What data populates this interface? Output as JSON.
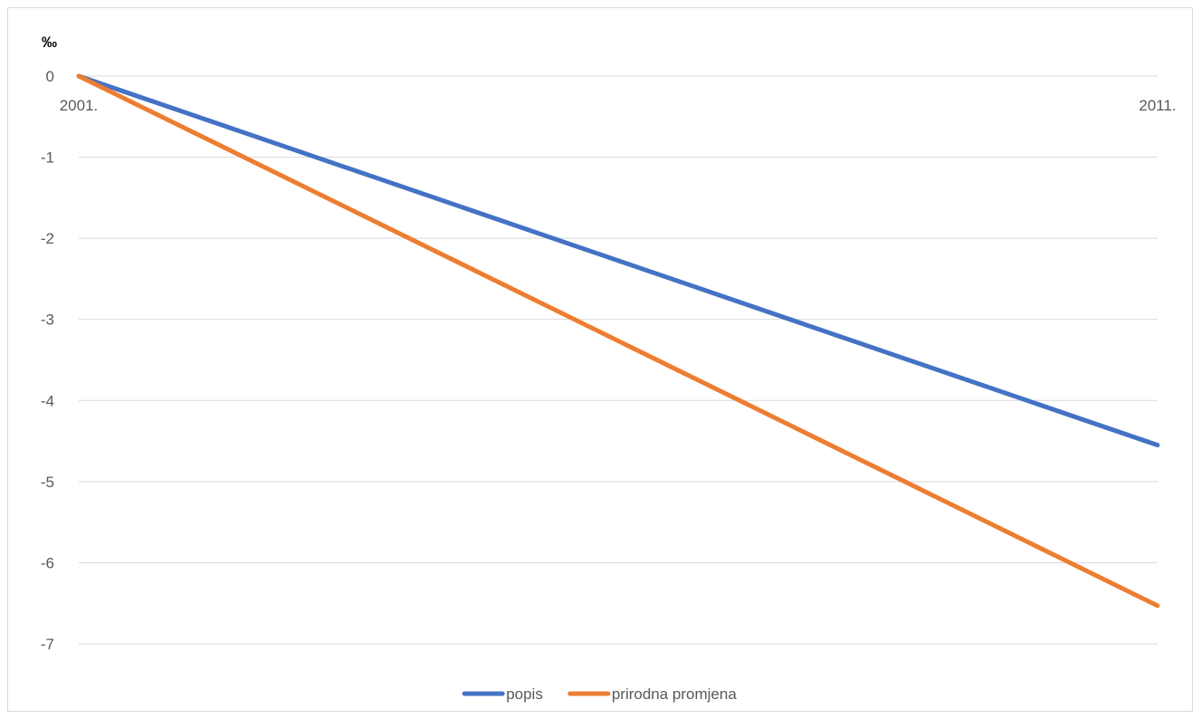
{
  "chart_data": {
    "type": "line",
    "title": "",
    "xlabel": "",
    "ylabel": "‰",
    "categories": [
      "2001.",
      "2011."
    ],
    "series": [
      {
        "name": "popis",
        "color": "#4472C4",
        "values": [
          0,
          -4.55
        ]
      },
      {
        "name": "prirodna promjena",
        "color": "#ED7D31",
        "values": [
          0,
          -6.53
        ]
      }
    ],
    "yticks": [
      "0",
      "-1",
      "-2",
      "-3",
      "-4",
      "-5",
      "-6",
      "-7"
    ],
    "ylim": [
      -7,
      0
    ],
    "grid": true,
    "legend_position": "bottom"
  }
}
